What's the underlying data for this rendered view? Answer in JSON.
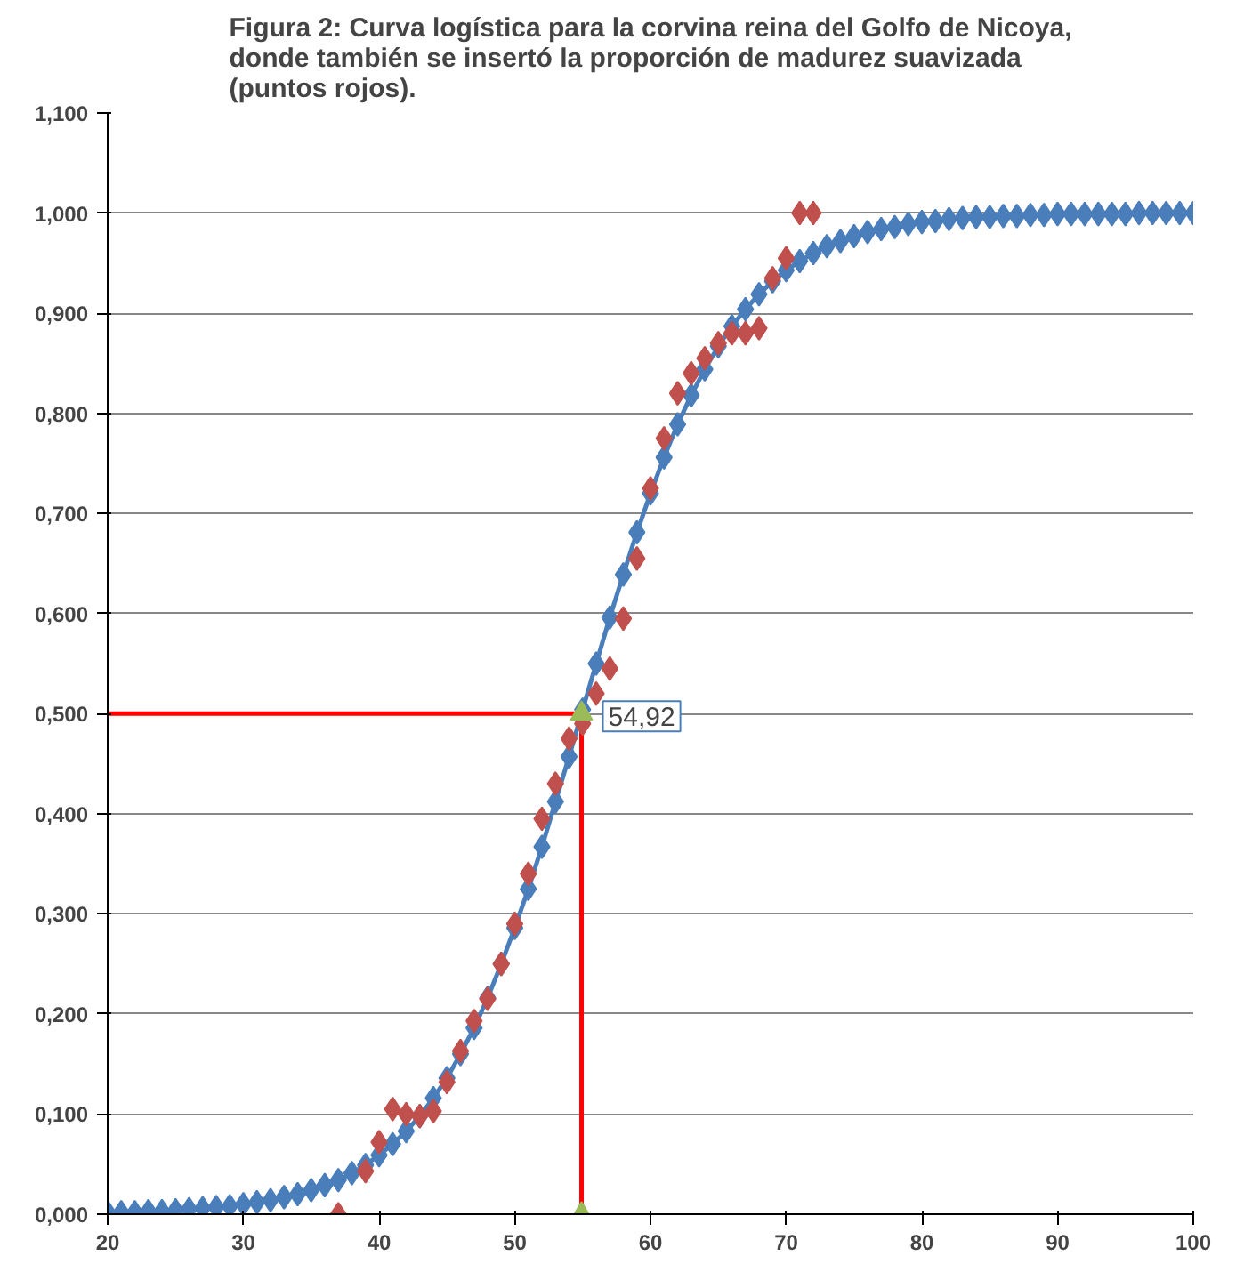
{
  "chart_data": {
    "type": "line",
    "title": "Figura 2: Curva logística para la corvina reina del Golfo de Nicoya,\ndonde también se insertó  la proporción de madurez suavizada\n(puntos rojos).",
    "xlim": [
      20,
      100
    ],
    "xticks": [
      20,
      30,
      40,
      50,
      60,
      70,
      80,
      90,
      100
    ],
    "ylim": [
      0,
      1.1
    ],
    "yticks": [
      {
        "value": 0,
        "label": "0,000"
      },
      {
        "value": 0.1,
        "label": "0,100"
      },
      {
        "value": 0.2,
        "label": "0,200"
      },
      {
        "value": 0.3,
        "label": "0,300"
      },
      {
        "value": 0.4,
        "label": "0,400"
      },
      {
        "value": 0.5,
        "label": "0,500"
      },
      {
        "value": 0.6,
        "label": "0,600"
      },
      {
        "value": 0.7,
        "label": "0,700"
      },
      {
        "value": 0.8,
        "label": "0,800"
      },
      {
        "value": 0.9,
        "label": "0,900"
      },
      {
        "value": 1.0,
        "label": "1,000"
      },
      {
        "value": 1.1,
        "label": "1,100"
      }
    ],
    "grid": "y",
    "annotations": [
      {
        "text": "54,92",
        "x": 54.92,
        "y": 0.5
      }
    ],
    "series": [
      {
        "color": "#ff0000",
        "marker": "none",
        "x": [
          20,
          54.92,
          54.92
        ],
        "values": [
          0.5,
          0.5,
          0
        ]
      },
      {
        "color": "#4a7ebb",
        "marker": "diamond",
        "x": [
          20,
          21,
          22,
          23,
          24,
          25,
          26,
          27,
          28,
          29,
          30,
          31,
          32,
          33,
          34,
          35,
          36,
          37,
          38,
          39,
          40,
          41,
          42,
          43,
          44,
          45,
          46,
          47,
          48,
          49,
          50,
          51,
          52,
          53,
          54,
          55,
          56,
          57,
          58,
          59,
          60,
          61,
          62,
          63,
          64,
          65,
          66,
          67,
          68,
          69,
          70,
          71,
          72,
          73,
          74,
          75,
          76,
          77,
          78,
          79,
          80,
          81,
          82,
          83,
          84,
          85,
          86,
          87,
          88,
          89,
          90,
          91,
          92,
          93,
          94,
          95,
          96,
          97,
          98,
          99,
          100
        ],
        "values": [
          0.002,
          0.002,
          0.002,
          0.003,
          0.003,
          0.004,
          0.005,
          0.006,
          0.007,
          0.008,
          0.01,
          0.012,
          0.014,
          0.017,
          0.02,
          0.024,
          0.029,
          0.034,
          0.041,
          0.049,
          0.059,
          0.07,
          0.083,
          0.098,
          0.116,
          0.136,
          0.16,
          0.186,
          0.216,
          0.25,
          0.286,
          0.325,
          0.367,
          0.412,
          0.457,
          0.504,
          0.55,
          0.596,
          0.639,
          0.681,
          0.72,
          0.756,
          0.789,
          0.818,
          0.844,
          0.867,
          0.887,
          0.904,
          0.919,
          0.932,
          0.943,
          0.952,
          0.96,
          0.967,
          0.972,
          0.977,
          0.981,
          0.984,
          0.986,
          0.989,
          0.991,
          0.992,
          0.994,
          0.995,
          0.996,
          0.996,
          0.997,
          0.997,
          0.998,
          0.998,
          0.999,
          0.999,
          0.999,
          0.999,
          0.999,
          0.999,
          1.0,
          1.0,
          1.0,
          1.0,
          1.0
        ]
      },
      {
        "type": "scatter",
        "color": "#c0504d",
        "marker": "diamond",
        "x": [
          37,
          39,
          40,
          41,
          42,
          43,
          44,
          45,
          46,
          47,
          48,
          49,
          50,
          51,
          52,
          53,
          54,
          55,
          56,
          57,
          58,
          59,
          60,
          61,
          62,
          63,
          64,
          65,
          66,
          67,
          68,
          69,
          70,
          71,
          72
        ],
        "values": [
          0.0,
          0.043,
          0.072,
          0.105,
          0.1,
          0.098,
          0.103,
          0.132,
          0.163,
          0.193,
          0.215,
          0.25,
          0.29,
          0.34,
          0.395,
          0.43,
          0.475,
          0.49,
          0.52,
          0.545,
          0.595,
          0.655,
          0.725,
          0.775,
          0.82,
          0.84,
          0.855,
          0.87,
          0.88,
          0.88,
          0.885,
          0.935,
          0.955,
          1.0,
          1.0
        ]
      },
      {
        "type": "scatter",
        "color": "#9bbb59",
        "marker": "triangle",
        "x": [
          54.92,
          54.92
        ],
        "values": [
          0.5,
          0.0
        ]
      }
    ]
  }
}
